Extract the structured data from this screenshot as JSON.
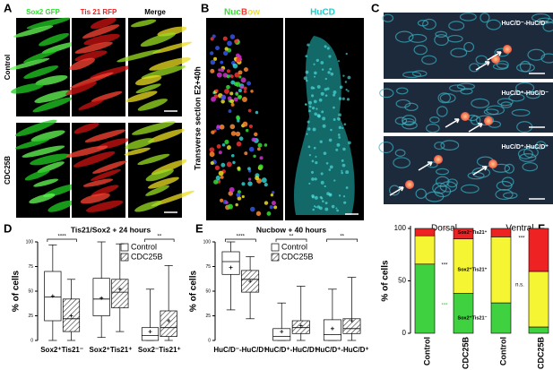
{
  "panels": {
    "A": {
      "letter": "A",
      "columns": [
        "Sox2 GFP",
        "Tis 21 RFP",
        "Merge"
      ],
      "rows": [
        "Control",
        "CDC25B"
      ]
    },
    "B": {
      "letter": "B",
      "titles": [
        "NucBow",
        "HuCD"
      ],
      "side_label": "Transverse section E2+40h"
    },
    "C": {
      "letter": "C",
      "labels": [
        "HuC/D⁻-HuC/D⁻",
        "HuC/D⁺-HuC/D⁻",
        "HuC/D⁺-HuC/D⁺"
      ]
    }
  },
  "chart_data": [
    {
      "type": "box",
      "letter": "D",
      "title": "Tis21/Sox2 + 24 hours",
      "ylabel": "% of cells",
      "categories": [
        "Sox2⁺Tis21⁻",
        "Sox2⁺Tis21⁺",
        "Sox2⁻Tis21⁺"
      ],
      "ylim": [
        0,
        100
      ],
      "yticks": [
        0,
        25,
        50,
        75,
        100
      ],
      "legend": "top-right",
      "significance": [
        "****",
        null,
        "**"
      ],
      "series": [
        {
          "name": "Control",
          "color": "#ffffff",
          "hatch": false,
          "boxes": [
            {
              "min": 0,
              "q1": 20,
              "median": 44,
              "q3": 70,
              "max": 97,
              "mean": 45
            },
            {
              "min": 3,
              "q1": 25,
              "median": 42,
              "q3": 63,
              "max": 100,
              "mean": 43
            },
            {
              "min": 0,
              "q1": 0,
              "median": 5,
              "q3": 13,
              "max": 52,
              "mean": 9
            }
          ]
        },
        {
          "name": "CDC25B",
          "color": "#ffffff",
          "hatch": true,
          "boxes": [
            {
              "min": 0,
              "q1": 9,
              "median": 22,
              "q3": 42,
              "max": 62,
              "mean": 25
            },
            {
              "min": 9,
              "q1": 33,
              "median": 49,
              "q3": 62,
              "max": 98,
              "mean": 52
            },
            {
              "min": 0,
              "q1": 4,
              "median": 13,
              "q3": 30,
              "max": 76,
              "mean": 20
            }
          ]
        }
      ]
    },
    {
      "type": "box",
      "letter": "E",
      "title": "Nucbow + 40 hours",
      "ylabel": "% of cells",
      "categories": [
        "HuC/D⁻-HuC/D⁻",
        "HuC/D⁺-HuC/D⁻",
        "HuC/D⁺-HuC/D⁺"
      ],
      "ylim": [
        0,
        100
      ],
      "yticks": [
        0,
        25,
        50,
        75,
        100
      ],
      "legend": "top-center",
      "significance": [
        "****",
        "**",
        "**"
      ],
      "series": [
        {
          "name": "Control",
          "color": "#ffffff",
          "hatch": false,
          "boxes": [
            {
              "min": 31,
              "q1": 67,
              "median": 80,
              "q3": 90,
              "max": 100,
              "mean": 74
            },
            {
              "min": 0,
              "q1": 0,
              "median": 4,
              "q3": 12,
              "max": 38,
              "mean": 9
            },
            {
              "min": 0,
              "q1": 0,
              "median": 6,
              "q3": 21,
              "max": 52,
              "mean": 12
            }
          ]
        },
        {
          "name": "CDC25B",
          "color": "#ffffff",
          "hatch": true,
          "boxes": [
            {
              "min": 22,
              "q1": 49,
              "median": 62,
              "q3": 71,
              "max": 85,
              "mean": 60
            },
            {
              "min": 0,
              "q1": 7,
              "median": 13,
              "q3": 20,
              "max": 55,
              "mean": 15
            },
            {
              "min": 0,
              "q1": 7,
              "median": 12,
              "q3": 22,
              "max": 64,
              "mean": 20
            }
          ]
        }
      ]
    },
    {
      "type": "stacked-bar",
      "letter": "F",
      "ylabel": "% of cells",
      "groups": [
        "Dorsal",
        "Ventral"
      ],
      "categories": [
        "Control",
        "CDC25B",
        "Control",
        "CDC25B"
      ],
      "ylim": [
        0,
        100
      ],
      "yticks": [
        0,
        50,
        100
      ],
      "series": [
        {
          "name": "Sox2⁺Tis21⁻",
          "color": "#3fd13f",
          "values": [
            66,
            38,
            29,
            6
          ]
        },
        {
          "name": "Sox2⁺Tis21⁺",
          "color": "#f5f533",
          "values": [
            27,
            52,
            63,
            53
          ]
        },
        {
          "name": "Sox2⁻Tis21⁺",
          "color": "#ee2222",
          "values": [
            7,
            10,
            8,
            41
          ]
        }
      ],
      "annotations": [
        "*",
        "***",
        "***",
        "***",
        "n.s."
      ]
    }
  ]
}
